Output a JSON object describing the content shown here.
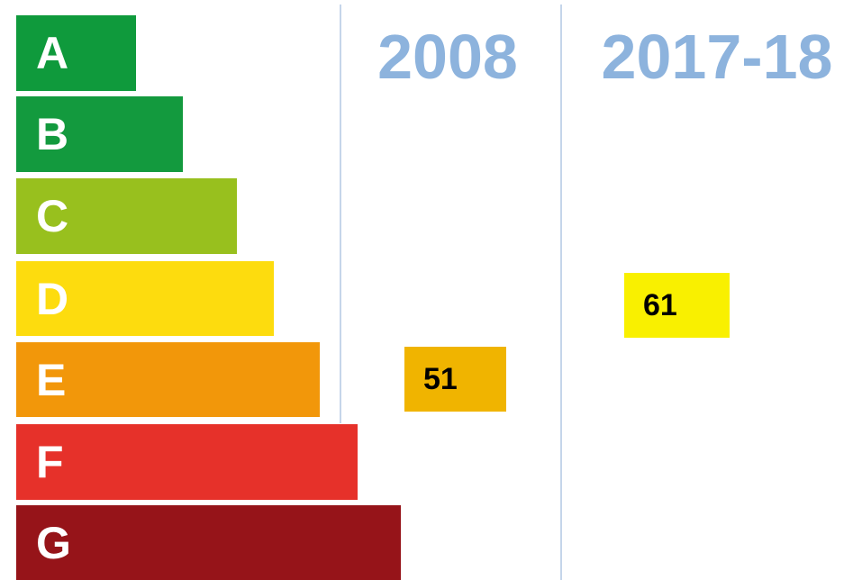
{
  "bands": [
    {
      "label": "A",
      "color": "#0f9a3c"
    },
    {
      "label": "B",
      "color": "#139a3e"
    },
    {
      "label": "C",
      "color": "#98c01e"
    },
    {
      "label": "D",
      "color": "#fddc0e"
    },
    {
      "label": "E",
      "color": "#f2970a"
    },
    {
      "label": "F",
      "color": "#e6312a"
    },
    {
      "label": "G",
      "color": "#961419"
    }
  ],
  "columns": [
    {
      "heading": "2008",
      "rating": 51,
      "color": "#f0b400"
    },
    {
      "heading": "2017-18",
      "rating": 61,
      "color": "#f9f000"
    }
  ]
}
